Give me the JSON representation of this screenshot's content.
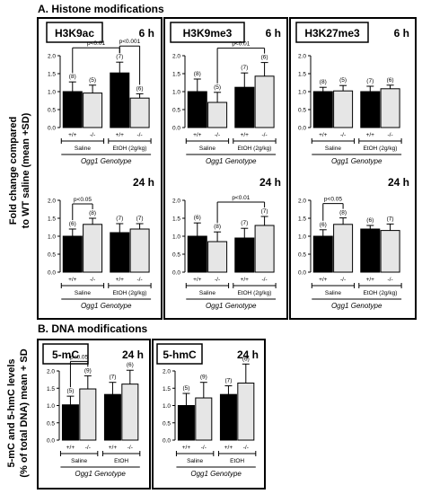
{
  "section_a": {
    "title": "A. Histone modifications"
  },
  "section_b": {
    "title": "B. DNA modifications"
  },
  "ylabel_a": [
    "Fold change compared",
    "to WT saline (mean +SD)"
  ],
  "ylabel_b": [
    "5-mC and 5-hmC levels",
    "(% of total DNA) mean + SD"
  ],
  "xlabel": "Ogg1 Genotype",
  "genotype_labels": [
    "+/+",
    "-/-"
  ],
  "colors": {
    "wild_type": "#000000",
    "knockout": "#e6e6e6",
    "frame": "#000000"
  },
  "chart_data": [
    {
      "type": "bar",
      "panel": "H3K9ac",
      "time": "6 h",
      "groups": [
        "Saline",
        "EtOH (2g/kg)"
      ],
      "ylim": [
        0,
        2.0
      ],
      "yticks": [
        0,
        0.5,
        1.0,
        1.5,
        2.0
      ],
      "values": [
        1.0,
        0.96,
        1.52,
        0.82
      ],
      "errors": [
        0.27,
        0.22,
        0.3,
        0.12
      ],
      "n": [
        "(8)",
        "(5)",
        "(7)",
        "(6)"
      ],
      "significance": [
        {
          "from": 0,
          "to": 2,
          "label": "p<0.01"
        },
        {
          "from": 2,
          "to": 3,
          "label": "p<0.001"
        }
      ]
    },
    {
      "type": "bar",
      "panel": "H3K9me3",
      "time": "6 h",
      "groups": [
        "Saline",
        "EtOH (2g/kg)"
      ],
      "ylim": [
        0,
        2.0
      ],
      "yticks": [
        0,
        0.5,
        1.0,
        1.5,
        2.0
      ],
      "values": [
        1.0,
        0.7,
        1.12,
        1.43
      ],
      "errors": [
        0.35,
        0.28,
        0.4,
        0.38
      ],
      "n": [
        "(8)",
        "(5)",
        "(7)",
        "(6)"
      ],
      "significance": [
        {
          "from": 1,
          "to": 3,
          "label": "p<0.01"
        }
      ]
    },
    {
      "type": "bar",
      "panel": "H3K27me3",
      "time": "6 h",
      "groups": [
        "Saline",
        "EtOH (2g/kg)"
      ],
      "ylim": [
        0,
        2.0
      ],
      "yticks": [
        0,
        0.5,
        1.0,
        1.5,
        2.0
      ],
      "values": [
        1.0,
        1.02,
        1.0,
        1.08
      ],
      "errors": [
        0.12,
        0.15,
        0.15,
        0.1
      ],
      "n": [
        "(8)",
        "(5)",
        "(7)",
        "(6)"
      ],
      "significance": []
    },
    {
      "type": "bar",
      "panel": "H3K9ac",
      "time": "24 h",
      "groups": [
        "Saline",
        "EtOH (2g/kg)"
      ],
      "ylim": [
        0,
        2.0
      ],
      "yticks": [
        0,
        0.5,
        1.0,
        1.5,
        2.0
      ],
      "values": [
        1.0,
        1.33,
        1.1,
        1.2
      ],
      "errors": [
        0.2,
        0.17,
        0.25,
        0.15
      ],
      "n": [
        "(6)",
        "(8)",
        "(7)",
        "(7)"
      ],
      "significance": [
        {
          "from": 0,
          "to": 1,
          "label": "p<0.05"
        }
      ]
    },
    {
      "type": "bar",
      "panel": "H3K9me3",
      "time": "24 h",
      "groups": [
        "Saline",
        "EtOH (2g/kg)"
      ],
      "ylim": [
        0,
        2.0
      ],
      "yticks": [
        0,
        0.5,
        1.0,
        1.5,
        2.0
      ],
      "values": [
        1.0,
        0.85,
        0.95,
        1.3
      ],
      "errors": [
        0.37,
        0.27,
        0.27,
        0.25
      ],
      "n": [
        "(6)",
        "(8)",
        "(7)",
        "(7)"
      ],
      "significance": [
        {
          "from": 1,
          "to": 3,
          "label": "p<0.01"
        }
      ]
    },
    {
      "type": "bar",
      "panel": "H3K27me3",
      "time": "24 h",
      "groups": [
        "Saline",
        "EtOH (2g/kg)"
      ],
      "ylim": [
        0,
        2.0
      ],
      "yticks": [
        0,
        0.5,
        1.0,
        1.5,
        2.0
      ],
      "values": [
        1.0,
        1.33,
        1.2,
        1.16
      ],
      "errors": [
        0.18,
        0.18,
        0.1,
        0.18
      ],
      "n": [
        "(6)",
        "(8)",
        "(6)",
        "(7)"
      ],
      "significance": [
        {
          "from": 0,
          "to": 1,
          "label": "p<0.05"
        }
      ]
    },
    {
      "type": "bar",
      "panel": "5-mC",
      "time": "24 h",
      "groups": [
        "Saline",
        "EtOH"
      ],
      "ylim": [
        0,
        2.0
      ],
      "yticks": [
        0,
        0.5,
        1.0,
        1.5,
        2.0
      ],
      "values": [
        1.02,
        1.48,
        1.32,
        1.62
      ],
      "errors": [
        0.25,
        0.38,
        0.35,
        0.4
      ],
      "n": [
        "(5)",
        "(9)",
        "(7)",
        "(6)"
      ],
      "significance": [
        {
          "from": 0,
          "to": 1,
          "label": "p<0.05"
        }
      ]
    },
    {
      "type": "bar",
      "panel": "5-hmC",
      "time": "24 h",
      "groups": [
        "Saline",
        "EtOH"
      ],
      "ylim": [
        0,
        2.0
      ],
      "yticks": [
        0,
        0.5,
        1.0,
        1.5,
        2.0
      ],
      "values": [
        1.0,
        1.22,
        1.32,
        1.65
      ],
      "errors": [
        0.35,
        0.45,
        0.25,
        0.55
      ],
      "n": [
        "(5)",
        "(9)",
        "(7)",
        "(6)"
      ],
      "significance": []
    }
  ]
}
